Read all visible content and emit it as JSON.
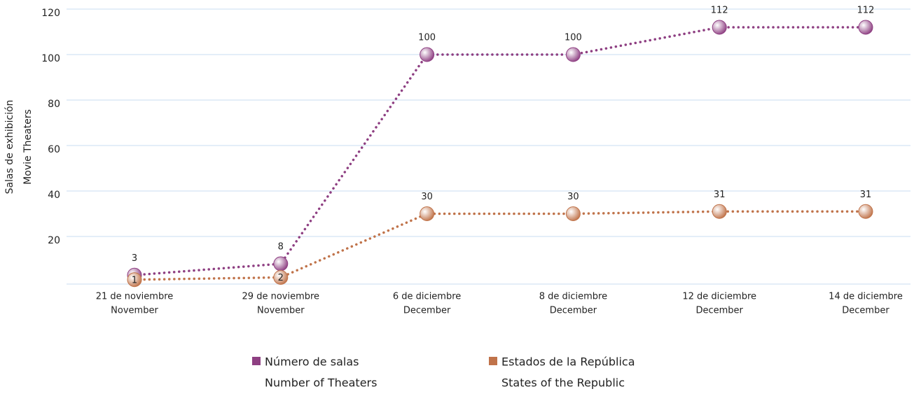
{
  "chart_data": {
    "type": "line",
    "ylabel": [
      "Salas de exhibición",
      "Movie Theaters"
    ],
    "categories": [
      [
        "21 de noviembre",
        "November"
      ],
      [
        "29 de noviembre",
        "November"
      ],
      [
        "6 de diciembre",
        "December"
      ],
      [
        "8 de diciembre",
        "December"
      ],
      [
        "12 de diciembre",
        "December"
      ],
      [
        "14 de diciembre",
        "December"
      ]
    ],
    "series": [
      {
        "name": [
          "Número de salas",
          "Number of Theaters"
        ],
        "color": "#8e3f82",
        "values": [
          3,
          8,
          100,
          100,
          112,
          112
        ]
      },
      {
        "name": [
          "Estados de la República",
          "States of the Republic"
        ],
        "color": "#c0734a",
        "values": [
          1,
          2,
          30,
          30,
          31,
          31
        ]
      }
    ],
    "ylim": [
      0,
      120
    ],
    "yticks": [
      20,
      40,
      60,
      80,
      100,
      120
    ],
    "grid": true,
    "legend": "bottom"
  }
}
